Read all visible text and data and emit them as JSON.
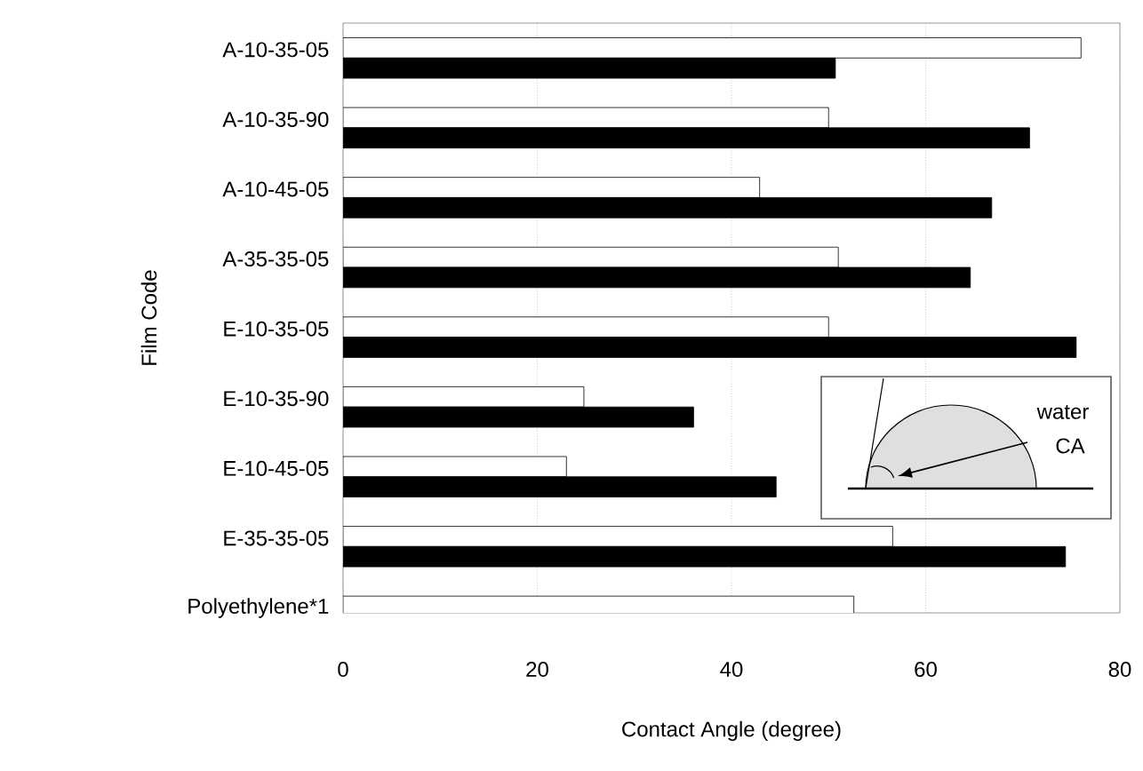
{
  "chart_data": {
    "type": "bar",
    "orientation": "horizontal",
    "xlabel": "Contact Angle (degree)",
    "ylabel": "Film Code",
    "categories": [
      "A-10-35-05",
      "A-10-35-90",
      "A-10-45-05",
      "A-35-35-05",
      "E-10-35-05",
      "E-10-35-90",
      "E-10-45-05",
      "E-35-35-05",
      "Polyethylene*1"
    ],
    "series": [
      {
        "color": "#ffffff",
        "values": [
          76.0,
          50.0,
          42.9,
          51.0,
          50.0,
          24.8,
          23.0,
          56.6,
          52.6
        ]
      },
      {
        "color": "#000000",
        "values": [
          50.7,
          70.7,
          66.8,
          64.6,
          75.5,
          36.1,
          44.6,
          74.4,
          null
        ]
      }
    ],
    "xlim": [
      0,
      80
    ],
    "xticks": [
      0,
      20,
      40,
      60,
      80
    ],
    "grid": "x",
    "annotations": [
      "water",
      "CA"
    ]
  }
}
